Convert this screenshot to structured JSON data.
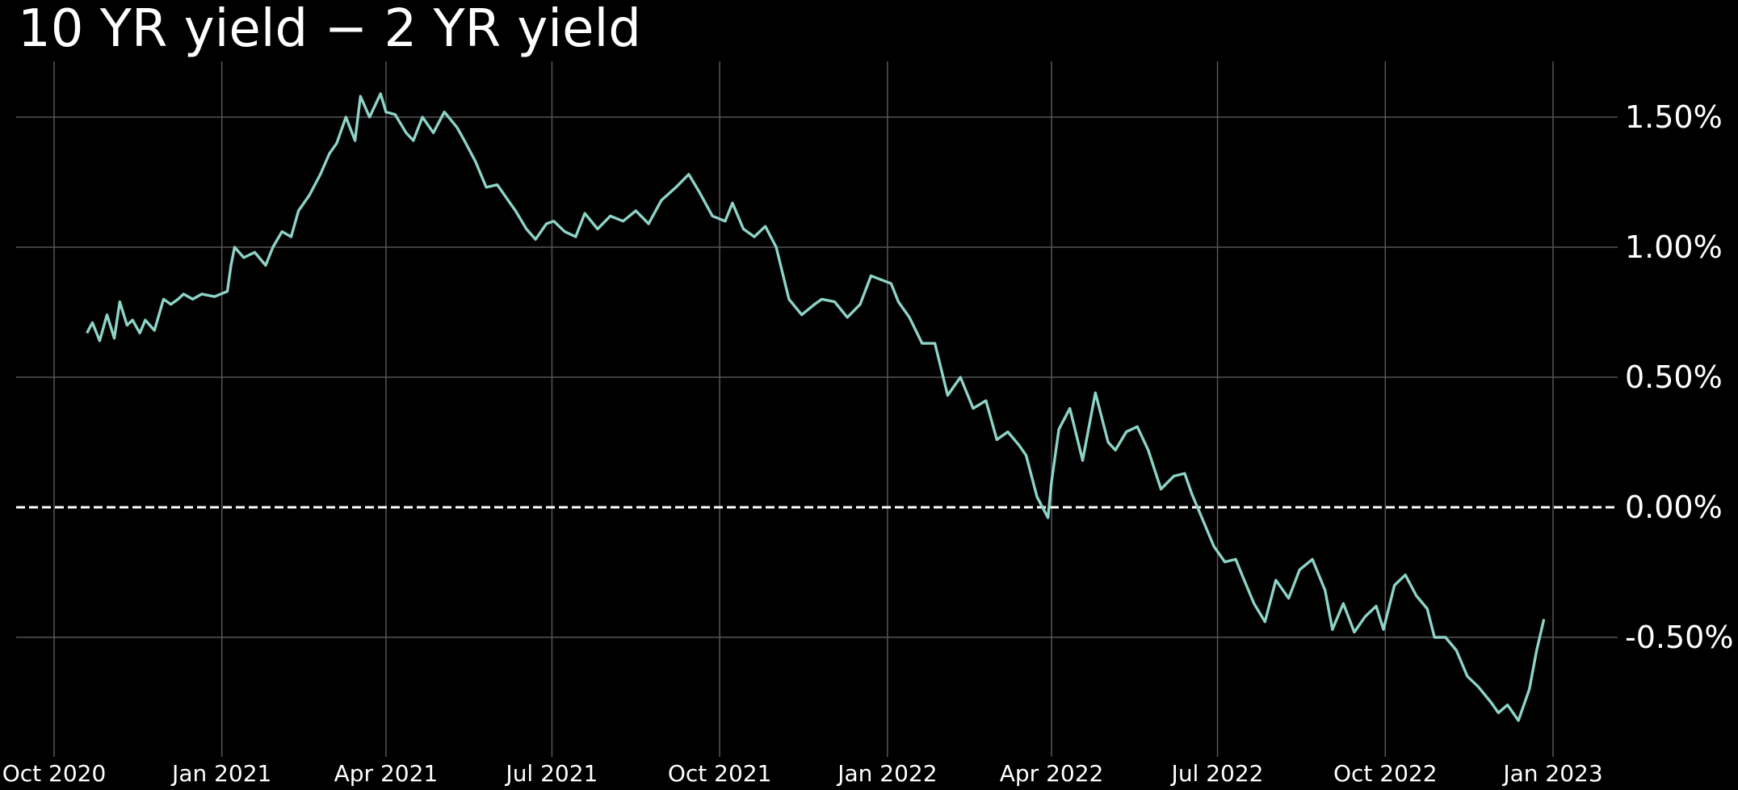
{
  "chart_data": {
    "type": "line",
    "title": "10 YR yield − 2 YR yield",
    "xlabel": "",
    "ylabel": "",
    "y_axis_position": "right",
    "ylim": [
      -0.9,
      1.7
    ],
    "grid": true,
    "background": "#000000",
    "line_color": "#8dd3c7",
    "grid_color": "#555555",
    "zero_line": {
      "value": 0.0,
      "style": "dashed",
      "color": "#ffffff"
    },
    "y_ticks": [
      {
        "value": 1.5,
        "label": "1.50%"
      },
      {
        "value": 1.0,
        "label": "1.00%"
      },
      {
        "value": 0.5,
        "label": "0.50%"
      },
      {
        "value": 0.0,
        "label": "0.00%"
      },
      {
        "value": -0.5,
        "label": "-0.50%"
      }
    ],
    "x_ticks": [
      {
        "date": "2020-10-01",
        "label": "Oct 2020"
      },
      {
        "date": "2021-01-01",
        "label": "Jan 2021"
      },
      {
        "date": "2021-04-01",
        "label": "Apr 2021"
      },
      {
        "date": "2021-07-01",
        "label": "Jul 2021"
      },
      {
        "date": "2021-10-01",
        "label": "Oct 2021"
      },
      {
        "date": "2022-01-01",
        "label": "Jan 2022"
      },
      {
        "date": "2022-04-01",
        "label": "Apr 2022"
      },
      {
        "date": "2022-07-01",
        "label": "Jul 2022"
      },
      {
        "date": "2022-10-01",
        "label": "Oct 2022"
      },
      {
        "date": "2023-01-01",
        "label": "Jan 2023"
      }
    ],
    "series": [
      {
        "name": "10 YR yield − 2 YR yield",
        "x": [
          "2020-10-19",
          "2020-10-22",
          "2020-10-26",
          "2020-10-30",
          "2020-11-03",
          "2020-11-06",
          "2020-11-10",
          "2020-11-13",
          "2020-11-17",
          "2020-11-20",
          "2020-11-25",
          "2020-11-30",
          "2020-12-04",
          "2020-12-08",
          "2020-12-11",
          "2020-12-16",
          "2020-12-21",
          "2020-12-28",
          "2021-01-04",
          "2021-01-06",
          "2021-01-08",
          "2021-01-13",
          "2021-01-19",
          "2021-01-25",
          "2021-01-29",
          "2021-02-03",
          "2021-02-08",
          "2021-02-12",
          "2021-02-18",
          "2021-02-24",
          "2021-03-01",
          "2021-03-05",
          "2021-03-10",
          "2021-03-15",
          "2021-03-18",
          "2021-03-23",
          "2021-03-29",
          "2021-04-01",
          "2021-04-06",
          "2021-04-12",
          "2021-04-16",
          "2021-04-21",
          "2021-04-27",
          "2021-05-03",
          "2021-05-10",
          "2021-05-14",
          "2021-05-20",
          "2021-05-26",
          "2021-06-01",
          "2021-06-07",
          "2021-06-11",
          "2021-06-17",
          "2021-06-22",
          "2021-06-28",
          "2021-07-02",
          "2021-07-08",
          "2021-07-14",
          "2021-07-19",
          "2021-07-26",
          "2021-08-02",
          "2021-08-09",
          "2021-08-16",
          "2021-08-23",
          "2021-08-30",
          "2021-09-07",
          "2021-09-14",
          "2021-09-20",
          "2021-09-27",
          "2021-10-04",
          "2021-10-08",
          "2021-10-14",
          "2021-10-20",
          "2021-10-26",
          "2021-11-01",
          "2021-11-08",
          "2021-11-15",
          "2021-11-22",
          "2021-11-26",
          "2021-12-03",
          "2021-12-10",
          "2021-12-17",
          "2021-12-23",
          "2022-01-03",
          "2022-01-07",
          "2022-01-13",
          "2022-01-20",
          "2022-01-27",
          "2022-02-03",
          "2022-02-10",
          "2022-02-17",
          "2022-02-24",
          "2022-03-02",
          "2022-03-08",
          "2022-03-14",
          "2022-03-18",
          "2022-03-24",
          "2022-03-30",
          "2022-04-01",
          "2022-04-05",
          "2022-04-11",
          "2022-04-18",
          "2022-04-25",
          "2022-05-02",
          "2022-05-06",
          "2022-05-12",
          "2022-05-18",
          "2022-05-24",
          "2022-05-31",
          "2022-06-07",
          "2022-06-13",
          "2022-06-17",
          "2022-06-23",
          "2022-06-29",
          "2022-07-05",
          "2022-07-11",
          "2022-07-15",
          "2022-07-21",
          "2022-07-27",
          "2022-08-02",
          "2022-08-09",
          "2022-08-15",
          "2022-08-22",
          "2022-08-29",
          "2022-09-02",
          "2022-09-08",
          "2022-09-14",
          "2022-09-20",
          "2022-09-26",
          "2022-09-30",
          "2022-10-06",
          "2022-10-12",
          "2022-10-18",
          "2022-10-24",
          "2022-10-28",
          "2022-11-03",
          "2022-11-09",
          "2022-11-15",
          "2022-11-21",
          "2022-11-28",
          "2022-12-02",
          "2022-12-07",
          "2022-12-13",
          "2022-12-19",
          "2022-12-23",
          "2022-12-27"
        ],
        "values": [
          0.67,
          0.71,
          0.64,
          0.74,
          0.65,
          0.79,
          0.7,
          0.72,
          0.67,
          0.72,
          0.68,
          0.8,
          0.78,
          0.8,
          0.82,
          0.8,
          0.82,
          0.81,
          0.83,
          0.93,
          1.0,
          0.96,
          0.98,
          0.93,
          1.0,
          1.06,
          1.04,
          1.14,
          1.2,
          1.28,
          1.36,
          1.4,
          1.5,
          1.41,
          1.58,
          1.5,
          1.59,
          1.52,
          1.51,
          1.44,
          1.41,
          1.5,
          1.44,
          1.52,
          1.46,
          1.41,
          1.33,
          1.23,
          1.24,
          1.18,
          1.14,
          1.07,
          1.03,
          1.09,
          1.1,
          1.06,
          1.04,
          1.13,
          1.07,
          1.12,
          1.1,
          1.14,
          1.09,
          1.18,
          1.23,
          1.28,
          1.21,
          1.12,
          1.1,
          1.17,
          1.07,
          1.04,
          1.08,
          1.0,
          0.8,
          0.74,
          0.78,
          0.8,
          0.79,
          0.73,
          0.78,
          0.89,
          0.86,
          0.79,
          0.73,
          0.63,
          0.63,
          0.43,
          0.5,
          0.38,
          0.41,
          0.26,
          0.29,
          0.24,
          0.2,
          0.04,
          -0.04,
          0.1,
          0.3,
          0.38,
          0.18,
          0.44,
          0.25,
          0.22,
          0.29,
          0.31,
          0.22,
          0.07,
          0.12,
          0.13,
          0.05,
          -0.05,
          -0.15,
          -0.21,
          -0.2,
          -0.27,
          -0.37,
          -0.44,
          -0.28,
          -0.35,
          -0.24,
          -0.2,
          -0.32,
          -0.47,
          -0.37,
          -0.48,
          -0.42,
          -0.38,
          -0.47,
          -0.3,
          -0.26,
          -0.34,
          -0.39,
          -0.5,
          -0.5,
          -0.55,
          -0.65,
          -0.69,
          -0.75,
          -0.79,
          -0.76,
          -0.82,
          -0.7,
          -0.55,
          -0.43
        ]
      }
    ]
  }
}
